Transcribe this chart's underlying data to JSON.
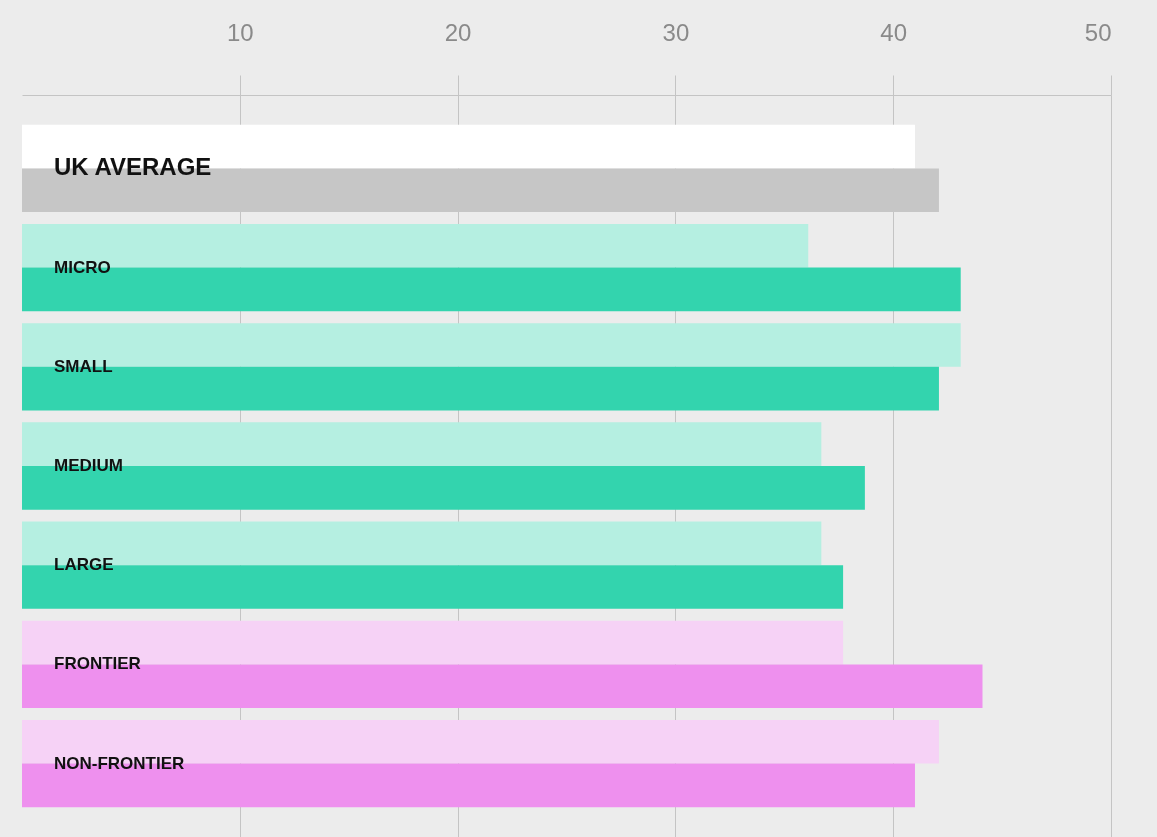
{
  "chart_data": {
    "type": "bar",
    "orientation": "horizontal",
    "categories": [
      "UK AVERAGE",
      "MICRO",
      "SMALL",
      "MEDIUM",
      "LARGE",
      "FRONTIER",
      "NON-FRONTIER"
    ],
    "series": [
      {
        "colors": [
          "#ffffff",
          "#b5efe1",
          "#b5efe1",
          "#b5efe1",
          "#b5efe1",
          "#f6d2f6",
          "#f6d2f6"
        ],
        "values": [
          41.0,
          36.1,
          43.1,
          36.7,
          36.7,
          37.7,
          42.1
        ]
      },
      {
        "colors": [
          "#c6c6c6",
          "#33d4ae",
          "#33d4ae",
          "#33d4ae",
          "#33d4ae",
          "#ee90ee",
          "#ee90ee"
        ],
        "values": [
          42.1,
          43.1,
          42.1,
          38.7,
          37.7,
          44.1,
          41.0
        ]
      }
    ],
    "xlim": [
      0,
      50
    ],
    "xticks": [
      10,
      20,
      30,
      40,
      50
    ],
    "grid": "x",
    "tick_labels": "x"
  }
}
